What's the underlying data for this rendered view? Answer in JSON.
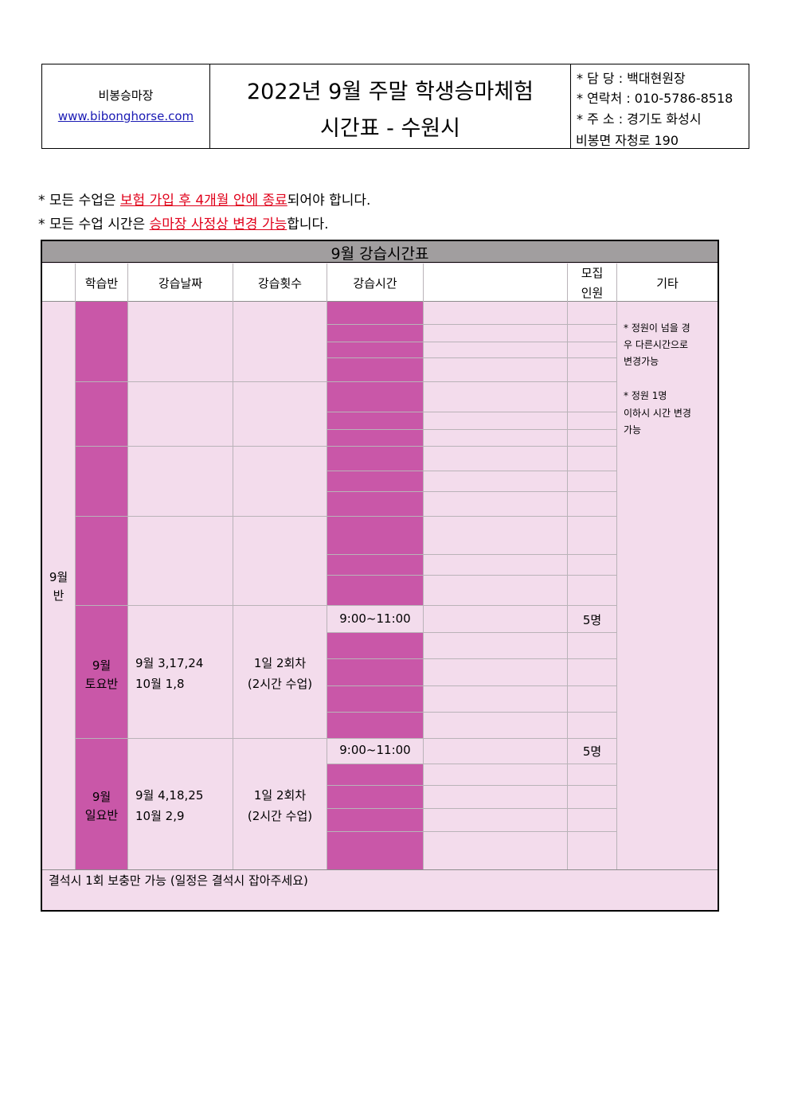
{
  "header": {
    "venue_name": "비봉승마장",
    "website": "www.bibonghorse.com",
    "title_line1": "2022년 9월 주말 학생승마체험",
    "title_line2": "시간표 - 수원시",
    "contact_manager": "* 담  당 : 백대현원장",
    "contact_phone": "* 연락처 : 010-5786-8518",
    "contact_address": "* 주  소 : 경기도 화성시",
    "contact_address2": "비봉면 자청로 190"
  },
  "notes": [
    {
      "prefix": "* 모든 수업은 ",
      "highlight": "보험 가입 후 4개월 안에 종료",
      "suffix": "되어야 합니다."
    },
    {
      "prefix": "* 모든 수업 시간은 ",
      "highlight": "승마장 사정상 변경 가능",
      "suffix": "합니다."
    }
  ],
  "schedule": {
    "title": "9월 강습시간표",
    "columns": {
      "class": "학습반",
      "date": "강습날짜",
      "sessions": "강습횟수",
      "time": "강습시간",
      "capacity_line1": "모집",
      "capacity_line2": "인원",
      "remarks": "기타"
    },
    "group_label_line1": "9월",
    "group_label_line2": "반",
    "remarks_text": [
      "* 정원이 넘을 경",
      "우  다른시간으로",
      "변경가능",
      "* 정원 1명",
      "이하시 시간 변경",
      "가능"
    ],
    "saturday": {
      "class_line1": "9월",
      "class_line2": "토요반",
      "dates_line1": "9월 3,17,24",
      "dates_line2": "10월 1,8",
      "sessions_line1": "1일 2회차",
      "sessions_line2": "(2시간 수업)",
      "time": "9:00~11:00",
      "capacity": "5명"
    },
    "sunday": {
      "class_line1": "9월",
      "class_line2": "일요반",
      "dates_line1": "9월 4,18,25",
      "dates_line2": "10월 2,9",
      "sessions_line1": "1일 2회차",
      "sessions_line2": "(2시간 수업)",
      "time": "9:00~11:00",
      "capacity": "5명"
    },
    "footer_note": "결석시 1회 보충만 가능 (일정은 결석시 잡아주세요)"
  },
  "colors": {
    "highlight_red": "#e0001a",
    "link_blue": "#1a1ab4",
    "title_bar_gray": "#a19e9f",
    "table_background_pink": "#f3dcec",
    "class_block_magenta": "#c957a8"
  }
}
